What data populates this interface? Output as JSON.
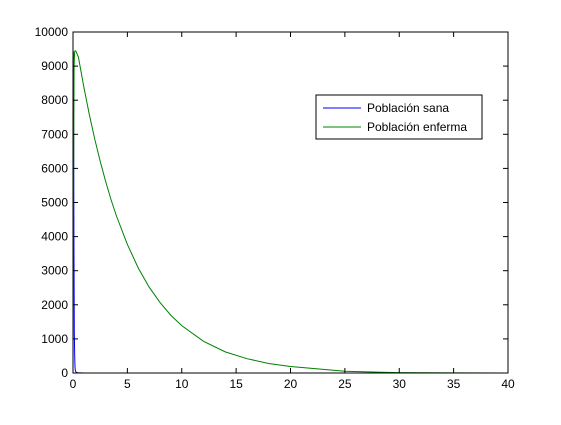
{
  "chart_data": {
    "type": "line",
    "title": "",
    "xlabel": "",
    "ylabel": "",
    "xlim": [
      0,
      40
    ],
    "ylim": [
      0,
      10000
    ],
    "x_ticks": [
      0,
      5,
      10,
      15,
      20,
      25,
      30,
      35,
      40
    ],
    "y_ticks": [
      0,
      1000,
      2000,
      3000,
      4000,
      5000,
      6000,
      7000,
      8000,
      9000,
      10000
    ],
    "grid": false,
    "legend_position": "top-right",
    "series": [
      {
        "name": "Población sana",
        "color": "#0000ff",
        "x": [
          0,
          0.03,
          0.06,
          0.09,
          0.12,
          0.15,
          0.18,
          0.21,
          0.25,
          0.3,
          0.35,
          0.4,
          0.5,
          0.6,
          0.8,
          1,
          1.5,
          2,
          5,
          10,
          20,
          30,
          40
        ],
        "y": [
          9450,
          9400,
          7000,
          3500,
          1200,
          600,
          200,
          80,
          40,
          25,
          15,
          10,
          5,
          3,
          2,
          1,
          0,
          0,
          0,
          0,
          0,
          0,
          0
        ]
      },
      {
        "name": "Población enferma",
        "color": "#008000",
        "x": [
          0,
          0.05,
          0.1,
          0.15,
          0.2,
          0.25,
          0.3,
          0.4,
          0.5,
          1,
          1.5,
          2,
          2.5,
          3,
          3.5,
          4,
          5,
          6,
          7,
          8,
          9,
          10,
          12,
          14,
          16,
          18,
          20,
          25,
          30,
          35,
          40
        ],
        "y": [
          0,
          5000,
          9000,
          9420,
          9450,
          9440,
          9420,
          9340,
          9260,
          8380,
          7580,
          6860,
          6210,
          5620,
          5080,
          4600,
          3770,
          3080,
          2520,
          2070,
          1690,
          1390,
          930,
          620,
          420,
          280,
          190,
          50,
          10,
          3,
          1
        ]
      }
    ]
  }
}
